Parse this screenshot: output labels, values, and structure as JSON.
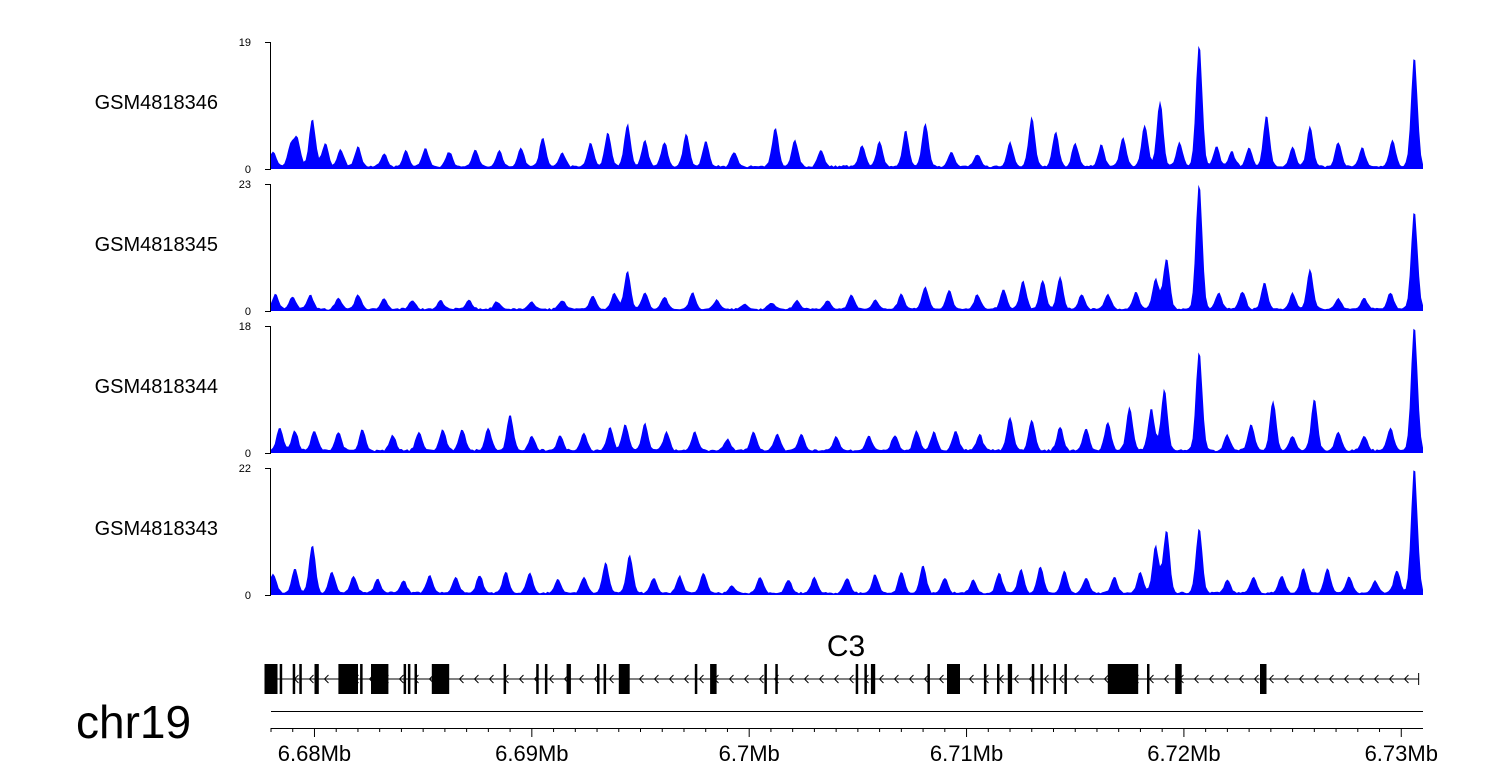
{
  "chart_data": {
    "type": "area",
    "chromosome": "chr19",
    "x_range_mb": [
      6.678,
      6.731
    ],
    "tick_labels": [
      "6.68Mb",
      "6.69Mb",
      "6.7Mb",
      "6.71Mb",
      "6.72Mb",
      "6.73Mb"
    ],
    "tick_values_mb": [
      6.68,
      6.69,
      6.7,
      6.71,
      6.72,
      6.73
    ],
    "fill_color": "#0000ff",
    "tracks": [
      {
        "name": "GSM4818346",
        "ymin_label": "0",
        "ymax_label": "19",
        "ymax": 19,
        "peaks": [
          [
            6.6781,
            2.2
          ],
          [
            6.6789,
            3.0
          ],
          [
            6.6792,
            4.1
          ],
          [
            6.6799,
            7.2
          ],
          [
            6.6805,
            3.5
          ],
          [
            6.6812,
            2.5
          ],
          [
            6.682,
            2.9
          ],
          [
            6.6832,
            1.9
          ],
          [
            6.6842,
            2.3
          ],
          [
            6.6851,
            2.8
          ],
          [
            6.6862,
            2.2
          ],
          [
            6.6874,
            2.6
          ],
          [
            6.6885,
            2.4
          ],
          [
            6.6895,
            2.8
          ],
          [
            6.6905,
            4.3
          ],
          [
            6.6914,
            2.1
          ],
          [
            6.6927,
            3.6
          ],
          [
            6.6935,
            5.1
          ],
          [
            6.6944,
            6.4
          ],
          [
            6.6952,
            3.9
          ],
          [
            6.6961,
            3.7
          ],
          [
            6.6971,
            4.9
          ],
          [
            6.698,
            3.8
          ],
          [
            6.6993,
            2.2
          ],
          [
            6.7012,
            5.8
          ],
          [
            6.7021,
            4.0
          ],
          [
            6.7033,
            2.5
          ],
          [
            6.7052,
            3.3
          ],
          [
            6.706,
            3.8
          ],
          [
            6.7072,
            5.4
          ],
          [
            6.7081,
            6.6
          ],
          [
            6.7093,
            2.1
          ],
          [
            6.7105,
            1.9
          ],
          [
            6.712,
            3.7
          ],
          [
            6.713,
            7.4
          ],
          [
            6.7141,
            5.3
          ],
          [
            6.715,
            3.6
          ],
          [
            6.7162,
            3.3
          ],
          [
            6.7172,
            4.3
          ],
          [
            6.7182,
            6.3
          ],
          [
            6.7189,
            9.9
          ],
          [
            6.7198,
            3.6
          ],
          [
            6.7207,
            18.5
          ],
          [
            6.7215,
            3.0
          ],
          [
            6.7222,
            2.3
          ],
          [
            6.723,
            2.9
          ],
          [
            6.7238,
            7.7
          ],
          [
            6.725,
            3.0
          ],
          [
            6.7258,
            6.1
          ],
          [
            6.7271,
            3.7
          ],
          [
            6.7282,
            2.8
          ],
          [
            6.7296,
            4.0
          ],
          [
            6.7306,
            16.6
          ]
        ]
      },
      {
        "name": "GSM4818345",
        "ymin_label": "0",
        "ymax_label": "23",
        "ymax": 23,
        "peaks": [
          [
            6.6782,
            2.7
          ],
          [
            6.679,
            2.2
          ],
          [
            6.6798,
            2.5
          ],
          [
            6.6811,
            2.0
          ],
          [
            6.682,
            2.7
          ],
          [
            6.6832,
            1.8
          ],
          [
            6.6845,
            1.6
          ],
          [
            6.6858,
            1.6
          ],
          [
            6.6871,
            1.7
          ],
          [
            6.6884,
            1.4
          ],
          [
            6.69,
            1.3
          ],
          [
            6.6914,
            1.6
          ],
          [
            6.6928,
            2.3
          ],
          [
            6.6938,
            3.0
          ],
          [
            6.6944,
            7.0
          ],
          [
            6.6952,
            3.1
          ],
          [
            6.6961,
            2.2
          ],
          [
            6.6974,
            3.0
          ],
          [
            6.6985,
            1.6
          ],
          [
            6.6998,
            0.9
          ],
          [
            6.701,
            1.2
          ],
          [
            6.7022,
            1.5
          ],
          [
            6.7036,
            1.5
          ],
          [
            6.7047,
            2.6
          ],
          [
            6.7058,
            1.7
          ],
          [
            6.707,
            2.7
          ],
          [
            6.7081,
            4.1
          ],
          [
            6.7092,
            3.4
          ],
          [
            6.7105,
            2.6
          ],
          [
            6.7117,
            3.6
          ],
          [
            6.7126,
            5.2
          ],
          [
            6.7135,
            5.3
          ],
          [
            6.7143,
            5.8
          ],
          [
            6.7153,
            2.6
          ],
          [
            6.7165,
            2.6
          ],
          [
            6.7178,
            3.0
          ],
          [
            6.7187,
            5.5
          ],
          [
            6.7192,
            9.3
          ],
          [
            6.7207,
            23.0
          ],
          [
            6.7216,
            3.0
          ],
          [
            6.7227,
            3.2
          ],
          [
            6.7237,
            4.8
          ],
          [
            6.725,
            2.9
          ],
          [
            6.7258,
            7.3
          ],
          [
            6.7271,
            1.9
          ],
          [
            6.7283,
            2.0
          ],
          [
            6.7295,
            2.9
          ],
          [
            6.7306,
            18.0
          ]
        ]
      },
      {
        "name": "GSM4818344",
        "ymin_label": "0",
        "ymax_label": "18",
        "ymax": 18,
        "peaks": [
          [
            6.6784,
            3.2
          ],
          [
            6.6791,
            2.8
          ],
          [
            6.68,
            2.8
          ],
          [
            6.6811,
            2.6
          ],
          [
            6.6822,
            2.9
          ],
          [
            6.6836,
            2.2
          ],
          [
            6.6848,
            2.5
          ],
          [
            6.6859,
            2.9
          ],
          [
            6.6868,
            3.0
          ],
          [
            6.688,
            3.2
          ],
          [
            6.689,
            5.2
          ],
          [
            6.69,
            2.0
          ],
          [
            6.6913,
            2.1
          ],
          [
            6.6924,
            2.6
          ],
          [
            6.6936,
            3.3
          ],
          [
            6.6943,
            3.8
          ],
          [
            6.6952,
            3.8
          ],
          [
            6.6962,
            2.7
          ],
          [
            6.6975,
            2.6
          ],
          [
            6.699,
            1.6
          ],
          [
            6.7002,
            2.6
          ],
          [
            6.7013,
            2.3
          ],
          [
            6.7024,
            2.2
          ],
          [
            6.704,
            2.0
          ],
          [
            6.7055,
            2.1
          ],
          [
            6.7067,
            2.2
          ],
          [
            6.7077,
            2.8
          ],
          [
            6.7085,
            2.6
          ],
          [
            6.7095,
            2.8
          ],
          [
            6.7106,
            2.3
          ],
          [
            6.712,
            4.8
          ],
          [
            6.713,
            4.5
          ],
          [
            6.7143,
            3.4
          ],
          [
            6.7155,
            3.0
          ],
          [
            6.7165,
            4.0
          ],
          [
            6.7175,
            6.3
          ],
          [
            6.7185,
            6.0
          ],
          [
            6.7191,
            8.8
          ],
          [
            6.7207,
            14.1
          ],
          [
            6.722,
            2.2
          ],
          [
            6.7231,
            3.8
          ],
          [
            6.7241,
            7.1
          ],
          [
            6.725,
            2.0
          ],
          [
            6.726,
            7.4
          ],
          [
            6.7271,
            2.6
          ],
          [
            6.7283,
            2.0
          ],
          [
            6.7295,
            3.3
          ],
          [
            6.7306,
            18.0
          ]
        ]
      },
      {
        "name": "GSM4818343",
        "ymin_label": "0",
        "ymax_label": "22",
        "ymax": 22,
        "peaks": [
          [
            6.6781,
            3.4
          ],
          [
            6.6791,
            4.3
          ],
          [
            6.6799,
            8.4
          ],
          [
            6.6808,
            3.7
          ],
          [
            6.6818,
            3.0
          ],
          [
            6.6829,
            2.5
          ],
          [
            6.6841,
            2.1
          ],
          [
            6.6853,
            3.0
          ],
          [
            6.6865,
            2.7
          ],
          [
            6.6876,
            3.1
          ],
          [
            6.6888,
            3.7
          ],
          [
            6.6899,
            3.5
          ],
          [
            6.6912,
            2.4
          ],
          [
            6.6924,
            2.8
          ],
          [
            6.6934,
            5.3
          ],
          [
            6.6945,
            6.7
          ],
          [
            6.6956,
            2.6
          ],
          [
            6.6968,
            3.0
          ],
          [
            6.6979,
            3.6
          ],
          [
            6.6992,
            1.2
          ],
          [
            6.7005,
            2.8
          ],
          [
            6.7018,
            2.3
          ],
          [
            6.703,
            2.7
          ],
          [
            6.7045,
            2.6
          ],
          [
            6.7058,
            3.3
          ],
          [
            6.707,
            3.7
          ],
          [
            6.708,
            4.8
          ],
          [
            6.709,
            2.7
          ],
          [
            6.7103,
            2.2
          ],
          [
            6.7115,
            3.5
          ],
          [
            6.7125,
            4.1
          ],
          [
            6.7134,
            4.7
          ],
          [
            6.7145,
            3.8
          ],
          [
            6.7155,
            2.6
          ],
          [
            6.7168,
            2.8
          ],
          [
            6.718,
            3.6
          ],
          [
            6.7187,
            8.2
          ],
          [
            6.7192,
            11.0
          ],
          [
            6.7207,
            11.3
          ],
          [
            6.722,
            2.3
          ],
          [
            6.7232,
            2.8
          ],
          [
            6.7245,
            3.0
          ],
          [
            6.7255,
            4.3
          ],
          [
            6.7266,
            4.3
          ],
          [
            6.7276,
            2.8
          ],
          [
            6.7288,
            2.0
          ],
          [
            6.7298,
            4.0
          ],
          [
            6.7306,
            22.0
          ]
        ]
      }
    ],
    "gene": {
      "name": "C3",
      "strand": "-",
      "start_mb": 6.6777,
      "end_mb": 6.7308,
      "exons_mb": [
        [
          6.6777,
          6.6783
        ],
        [
          6.6784,
          6.6785
        ],
        [
          6.679,
          6.6791
        ],
        [
          6.6793,
          6.6794
        ],
        [
          6.68,
          6.6802
        ],
        [
          6.6811,
          6.682
        ],
        [
          6.6821,
          6.6822
        ],
        [
          6.6826,
          6.6834
        ],
        [
          6.6841,
          6.6842
        ],
        [
          6.6843,
          6.6844
        ],
        [
          6.6846,
          6.6847
        ],
        [
          6.6854,
          6.6862
        ],
        [
          6.6887,
          6.6888
        ],
        [
          6.6902,
          6.6903
        ],
        [
          6.6906,
          6.6907
        ],
        [
          6.6916,
          6.6918
        ],
        [
          6.693,
          6.6931
        ],
        [
          6.6933,
          6.6934
        ],
        [
          6.694,
          6.6945
        ],
        [
          6.6975,
          6.6976
        ],
        [
          6.6982,
          6.6985
        ],
        [
          6.7007,
          6.7008
        ],
        [
          6.7012,
          6.7013
        ],
        [
          6.7049,
          6.705
        ],
        [
          6.7053,
          6.7054
        ],
        [
          6.7056,
          6.7058
        ],
        [
          6.7082,
          6.7083
        ],
        [
          6.7091,
          6.7097
        ],
        [
          6.7108,
          6.7109
        ],
        [
          6.7114,
          6.7115
        ],
        [
          6.7119,
          6.7121
        ],
        [
          6.713,
          6.7131
        ],
        [
          6.7134,
          6.7135
        ],
        [
          6.714,
          6.7141
        ],
        [
          6.7145,
          6.7146
        ],
        [
          6.7165,
          6.7179
        ],
        [
          6.7183,
          6.7184
        ],
        [
          6.7196,
          6.7199
        ],
        [
          6.7235,
          6.7238
        ]
      ]
    }
  }
}
